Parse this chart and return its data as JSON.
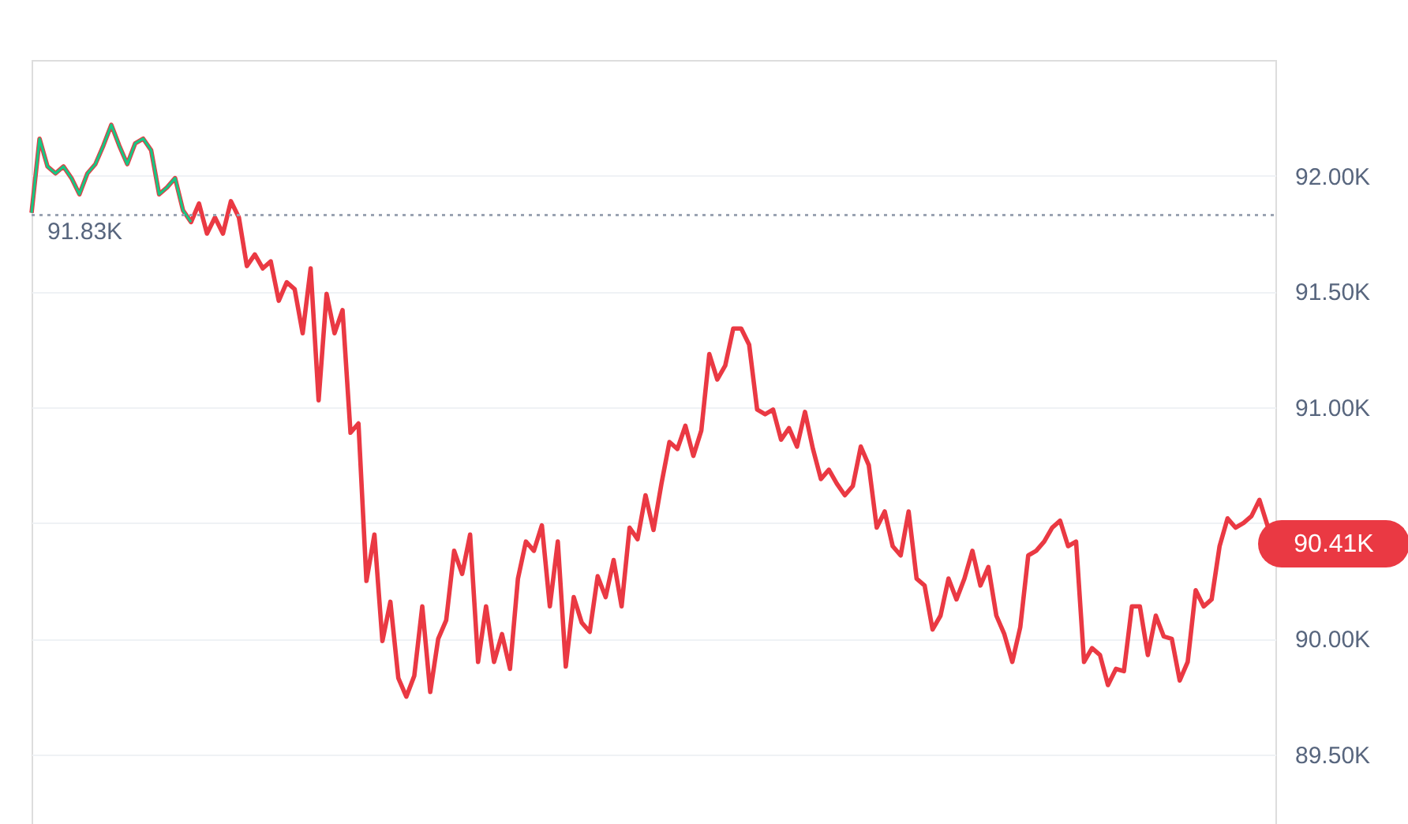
{
  "chart_data": {
    "type": "line",
    "categories": [
      null,
      null,
      null,
      null,
      null,
      null,
      null,
      null,
      null,
      null,
      null,
      null,
      null,
      null,
      null,
      null,
      null,
      null,
      null,
      null,
      null,
      null,
      null,
      null,
      null,
      null,
      null,
      null,
      null,
      null,
      null,
      null,
      null,
      null,
      null,
      null,
      null,
      null,
      null,
      null,
      null,
      null,
      null,
      null,
      null,
      null,
      null,
      null,
      null,
      null,
      null,
      null,
      null,
      null,
      null,
      null,
      null,
      null,
      null,
      null,
      null,
      null,
      null,
      null,
      null,
      null,
      null,
      null,
      null,
      null,
      null,
      null,
      null,
      null,
      null,
      null,
      null,
      null,
      null,
      null,
      null,
      null,
      null,
      null,
      null,
      null,
      null,
      null,
      null,
      null,
      null,
      null,
      null,
      null,
      null,
      null,
      null,
      null,
      null,
      null,
      null,
      null,
      null,
      null,
      null,
      null,
      null,
      null,
      null,
      null,
      null,
      null,
      null,
      null,
      null,
      null,
      null,
      null,
      null,
      null,
      null,
      null,
      null,
      null,
      null,
      null,
      null,
      null,
      null,
      null,
      null,
      null,
      null,
      null,
      null,
      null,
      null,
      null,
      null,
      null,
      null,
      null,
      null,
      null,
      null,
      null,
      null,
      null,
      null,
      null,
      null,
      null,
      null,
      null,
      null,
      null,
      null
    ],
    "series": [
      {
        "color": "#ea3943",
        "values": [
          91840,
          92160,
          92040,
          92010,
          92040,
          91990,
          91920,
          92010,
          92050,
          92130,
          92220,
          92130,
          92050,
          92140,
          92160,
          92110,
          91920,
          91950,
          91990,
          91850,
          91800,
          91880,
          91750,
          91820,
          91750,
          91890,
          91820,
          91610,
          91660,
          91600,
          91630,
          91460,
          91540,
          91510,
          91320,
          91600,
          91030,
          91490,
          91320,
          91420,
          90890,
          90930,
          90250,
          90450,
          89990,
          90160,
          89830,
          89750,
          89840,
          90140,
          89770,
          90000,
          90080,
          90380,
          90280,
          90450,
          89900,
          90140,
          89900,
          90020,
          89870,
          90260,
          90420,
          90380,
          90490,
          90140,
          90420,
          89880,
          90180,
          90070,
          90030,
          90270,
          90180,
          90340,
          90140,
          90480,
          90430,
          90620,
          90470,
          90670,
          90850,
          90820,
          90920,
          90790,
          90900,
          91230,
          91120,
          91180,
          91340,
          91340,
          91270,
          90990,
          90970,
          90990,
          90860,
          90910,
          90830,
          90980,
          90820,
          90690,
          90730,
          90670,
          90620,
          90660,
          90830,
          90750,
          90480,
          90550,
          90400,
          90360,
          90550,
          90260,
          90230,
          90040,
          90100,
          90260,
          90170,
          90260,
          90380,
          90230,
          90310,
          90100,
          90020,
          89900,
          90050,
          90360,
          90380,
          90420,
          90480,
          90510,
          90400,
          90420,
          89900,
          89960,
          89930,
          89800,
          89870,
          89860,
          90140,
          90140,
          89930,
          90100,
          90010,
          90000,
          89820,
          89900,
          90210,
          90140,
          90170,
          90400,
          90520,
          90480,
          90500,
          90530,
          90600,
          90490,
          90410
        ]
      },
      {
        "color": "#16c784",
        "values": [
          91840,
          92160,
          92040,
          92010,
          92040,
          91990,
          91920,
          92010,
          92050,
          92130,
          92220,
          92130,
          92050,
          92140,
          92160,
          92110,
          91920,
          91950,
          91990,
          91850,
          91800,
          null,
          null,
          null,
          null,
          null,
          null,
          null,
          null,
          null,
          null,
          null,
          null,
          null,
          null,
          null,
          null,
          null,
          null,
          null,
          null,
          null,
          null,
          null,
          null,
          null,
          null,
          null,
          null,
          null,
          null,
          null,
          null,
          null,
          null,
          null,
          null,
          null,
          null,
          null,
          null,
          null,
          null,
          null,
          null,
          null,
          null,
          null,
          null,
          null,
          null,
          null,
          null,
          null,
          null,
          null,
          null,
          null,
          null,
          null,
          null,
          null,
          null,
          null,
          null,
          null,
          null,
          null,
          null,
          null,
          null,
          null,
          null,
          null,
          null,
          null,
          null,
          null,
          null,
          null,
          null,
          null,
          null,
          null,
          null,
          null,
          null,
          null,
          null,
          null,
          null,
          null,
          null,
          null,
          null,
          null,
          null,
          null,
          null,
          null,
          null,
          null,
          null,
          null,
          null,
          null,
          null,
          null,
          null,
          null,
          null,
          null,
          null,
          null,
          null,
          null,
          null,
          null,
          null,
          null,
          null,
          null,
          null,
          null,
          null,
          null,
          null,
          null,
          null,
          null,
          null,
          null,
          null,
          null,
          null,
          null,
          null
        ]
      }
    ],
    "ylim": [
      89200,
      92500
    ],
    "yticks": [
      {
        "value": 89500,
        "label": "89.50K"
      },
      {
        "value": 90000,
        "label": "90.00K"
      },
      {
        "value": 90500,
        "label": null
      },
      {
        "value": 91000,
        "label": "91.00K"
      },
      {
        "value": 91500,
        "label": "91.50K"
      },
      {
        "value": 92000,
        "label": "92.00K"
      }
    ],
    "ref_lines": [
      {
        "axis": "y",
        "value": 91830,
        "label": "91.83K",
        "color": "#9aa3b2",
        "line_style": "dotted"
      }
    ],
    "annotations": [
      "90.41K"
    ],
    "grid": "y"
  }
}
